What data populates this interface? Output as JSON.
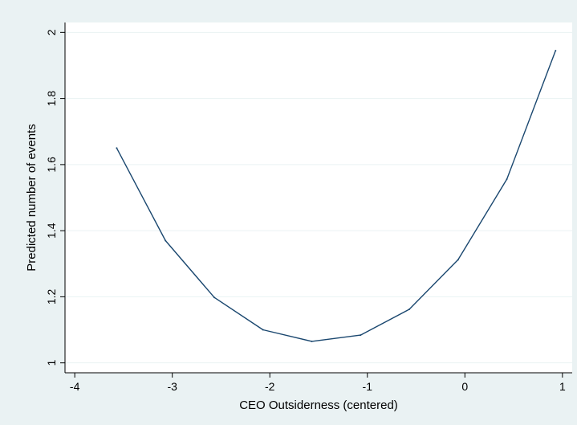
{
  "chart_data": {
    "type": "line",
    "xlabel": "CEO Outsiderness (centered)",
    "ylabel": "Predicted number of events",
    "xlim": [
      -4.1,
      1.1
    ],
    "ylim": [
      0.97,
      2.03
    ],
    "x_ticks": [
      -4,
      -3,
      -2,
      -1,
      0,
      1
    ],
    "y_ticks": [
      1,
      1.2,
      1.4,
      1.6,
      1.8,
      2
    ],
    "x_tick_labels": [
      "-4",
      "-3",
      "-2",
      "-1",
      "0",
      "1"
    ],
    "y_tick_labels": [
      "1",
      "1.2",
      "1.4",
      "1.6",
      "1.8",
      "2"
    ],
    "grid": true,
    "legend": "none",
    "series": [
      {
        "x": [
          -3.57,
          -3.07,
          -2.57,
          -2.07,
          -1.57,
          -1.07,
          -0.57,
          -0.07,
          0.43,
          0.93
        ],
        "y": [
          1.65,
          1.37,
          1.198,
          1.1,
          1.065,
          1.084,
          1.162,
          1.312,
          1.556,
          1.945
        ]
      }
    ],
    "colors": {
      "background": "#eaf2f3",
      "plot_area": "#ffffff",
      "line": "#1a476f",
      "grid": "#eaf2f3"
    }
  }
}
